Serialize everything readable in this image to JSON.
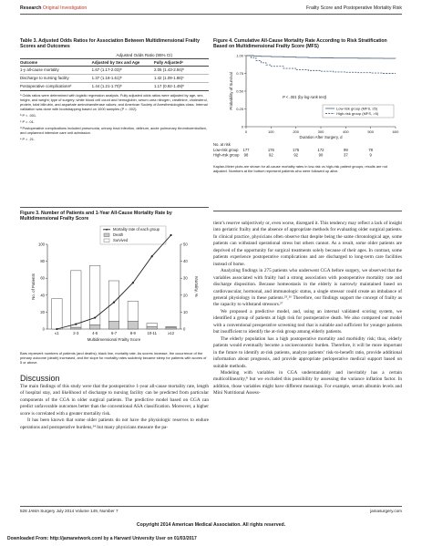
{
  "header": {
    "left_journal": "Research",
    "left_section": "Original Investigation",
    "right": "Frailty Score and Postoperative Mortality Risk"
  },
  "table3": {
    "title": "Table 3. Adjusted Odds Ratios for Association Between Multidimensional Frailty Scores and Outcomes",
    "group_header": "Adjusted Odds Ratio (95% CI)",
    "columns": [
      "Outcome",
      "Adjusted by Sex and Age",
      "Fully Adjustedᵃ"
    ],
    "rows": [
      [
        "1-y all-cause mortality",
        "1.67 (1.17-2.03)ᵇ",
        "2.05 (1.43-2.94)ᵇ"
      ],
      [
        "Discharge to nursing facility",
        "1.37 (1.18-1.61)ᵇ",
        "1.42 (1.09-1.86)ᶜ"
      ],
      [
        "Postoperative complicationsᵈ",
        "1.44 (1.21-1.70)ᵇ",
        "1.17 (0.92-1.49)ᵉ"
      ]
    ],
    "footnotes": [
      "ᵃ Odds ratios were determined with logistic regression analysis. Fully adjusted odds ratios were adjusted by age, sex, height, and weight; type of surgery; white blood cell count and hemoglobin, serum urea nitrogen, creatinine, cholesterol, protein, total bilirubin, and aspartate aminotransferase values; and American Society of Anesthesiologists class. Internal validation was done with bootstrapping based on 1000 samples (P = .002).",
      "ᵇ P < .001.",
      "ᶜ P = .01.",
      "ᵈ Postoperative complications included pneumonia, urinary tract infection, delirium, acute pulmonary thromboembolism, and unplanned intensive care unit admission.",
      "ᵉ P = .21."
    ]
  },
  "figure4": {
    "title": "Figure 4. Cumulative All-Cause Mortality Rate According to Risk Stratification Based on Multidimensional Frailty Score (MFS)",
    "caption": "Kaplan-Meier plots are shown for all-cause mortality rates in low-risk vs high-risk patient groups; results are not adjusted. Numbers at the bottom represent patients who were followed up alive.",
    "at_risk_label": "No. at risk",
    "at_risk_rows": [
      {
        "label": "Low-risk group",
        "values": [
          "177",
          "176",
          "175",
          "172",
          "99",
          "78"
        ]
      },
      {
        "label": "High-risk group",
        "values": [
          "98",
          "92",
          "92",
          "90",
          "37",
          "9"
        ]
      }
    ]
  },
  "figure3": {
    "title": "Figure 3. Number of Patients and 1-Year All-Cause Mortality Rate by Multidimensional Frailty Score",
    "caption": "Bars represent numbers of patients (and deaths); black line, mortality rate. As scores increase, the occurrence of the primary outcome (death) increased, and the slope for mortality rates suddenly became steep for patients with scores of 5 or above."
  },
  "chart_data": [
    {
      "type": "line",
      "ylabel": "Probability of Survival",
      "xlabel": "Duration After Surgery, d",
      "x_ticks": [
        0,
        100,
        200,
        300,
        400,
        500,
        600
      ],
      "y_ticks": [
        0,
        0.25,
        0.5,
        0.75,
        1.0
      ],
      "y_tick_labels": [
        "0",
        "0.25",
        "0.50",
        "0.75",
        "1.00"
      ],
      "xlim": [
        0,
        600
      ],
      "ylim": [
        0,
        1
      ],
      "annotation": "P < .001 (by log-rank test)",
      "legend_position": "bottom-right",
      "series": [
        {
          "name": "Low-risk group (MFS, ≤5)",
          "color": "#5a6f86",
          "dash": "solid",
          "x": [
            0,
            30,
            60,
            100,
            150,
            200,
            250,
            300,
            350,
            400,
            450,
            500,
            550,
            600
          ],
          "y": [
            1.0,
            0.995,
            0.99,
            0.985,
            0.98,
            0.975,
            0.97,
            0.968,
            0.966,
            0.965,
            0.963,
            0.962,
            0.961,
            0.96
          ]
        },
        {
          "name": "High-risk group (MFS, >5)",
          "color": "#5a6f86",
          "dash": "dashed",
          "x": [
            0,
            20,
            40,
            60,
            80,
            100,
            150,
            200,
            250,
            300,
            350,
            400,
            450,
            500,
            550,
            600
          ],
          "y": [
            1.0,
            0.97,
            0.93,
            0.9,
            0.87,
            0.85,
            0.82,
            0.8,
            0.79,
            0.78,
            0.77,
            0.765,
            0.76,
            0.755,
            0.75,
            0.75
          ]
        }
      ]
    },
    {
      "type": "bar",
      "xlabel": "Multidimensional Frailty Score",
      "ylabel": "No. of Patients",
      "ylabel_right": "Mortality, %",
      "categories": [
        "≤1",
        "2-3",
        "4-5",
        "6-7",
        "8-9",
        "10-11",
        "≥12"
      ],
      "ylim": [
        0,
        100
      ],
      "ylim_right": [
        0,
        50
      ],
      "y_ticks": [
        0,
        20,
        40,
        60,
        80,
        100
      ],
      "y_ticks_right": [
        0,
        10,
        20,
        30,
        40,
        50
      ],
      "legend_position": "top-right",
      "series": [
        {
          "name": "Survived",
          "kind": "bar",
          "color": "#ffffff",
          "values": [
            36,
            67,
            70,
            48,
            24,
            4,
            1
          ]
        },
        {
          "name": "Death",
          "kind": "bar",
          "color": "#c9c9c9",
          "values": [
            0,
            2,
            5,
            9,
            9,
            3,
            2
          ]
        },
        {
          "name": "Mortality rate of each group",
          "kind": "line",
          "color": "#222222",
          "values": [
            0,
            2.9,
            6.7,
            15.8,
            27.3,
            42.9,
            66.7
          ]
        }
      ]
    }
  ],
  "discussion": {
    "heading": "Discussion",
    "paragraphs": [
      "The main findings of this study were that the postoperative 1-year all-cause mortality rate, length of hospital stay, and likelihood of discharge to nursing facility can be predicted from particular components of the CGA in older surgical patients. The predictive model based on CGA can predict unfavorable outcomes better than the conventional ASA classification. Moreover, a higher score is correlated with a greater mortality risk.",
      "It has been known that some older patients do not have the physiologic reserves to endure operations and postoperative burdens,²⁴ but many physicians measure the pa-"
    ]
  },
  "right_column": {
    "paragraphs": [
      "tient’s reserve subjectively or, even worse, disregard it. This tendency may reflect a lack of insight into geriatric frailty and the absence of appropriate methods for evaluating older surgical patients. In clinical practice, physicians often observe that despite being the same chronological age, some patients can withstand operational stress but others cannot. As a result, some older patients are deprived of the opportunity for surgical treatments solely because of their ages. In contrast, some patients experience postoperative complications and are discharged to long-term care facilities instead of home.",
      "Analyzing findings in 275 patients who underwent CGA before surgery, we observed that the variables associated with frailty had a strong association with postoperative mortality rate and discharge disposition. Because homeostasis in the elderly is narrowly maintained based on cardiovascular, hormonal, and immunologic status, a single stressor could create an imbalance of general physiology in these patients.²⁵,²⁶ Therefore, our findings support the concept of frailty as the capacity to withstand stressors.²⁷",
      "We proposed a predictive model, and, using an internal validated scoring system, we identified a group of patients at high risk for postoperative death. We also compared our model with a conventional preoperative screening tool that is suitable and sufficient for younger patients but insufficient to identify the at-risk group among elderly patients.",
      "The elderly population has a high postoperative mortality and morbidity risk; thus, elderly patients would eventually become a socioeconomic burden. Therefore, it will be more important in the future to identify at-risk patients, analyze patients’ risk-to-benefit ratio, provide additional information about prognosis, and provide appropriate perioperative medical support based on suitable methods.",
      "Modeling with variables in CGA understandably and inevitably has a certain multicollinearity,⁸ but we excluded this possibility by assessing the variance inflation factor. In addition, those variables might have different meanings. For example, serum albumin levels and Mini Nutritional Assess-"
    ]
  },
  "footer": {
    "left": "528   JAMA Surgery   July 2014   Volume 149, Number 7",
    "right": "jamasurgery.com",
    "copyright": "Copyright 2014 American Medical Association. All rights reserved.",
    "download": "Downloaded From: http://jamanetwork.com/ by a Harvard University User on 01/03/2017"
  }
}
